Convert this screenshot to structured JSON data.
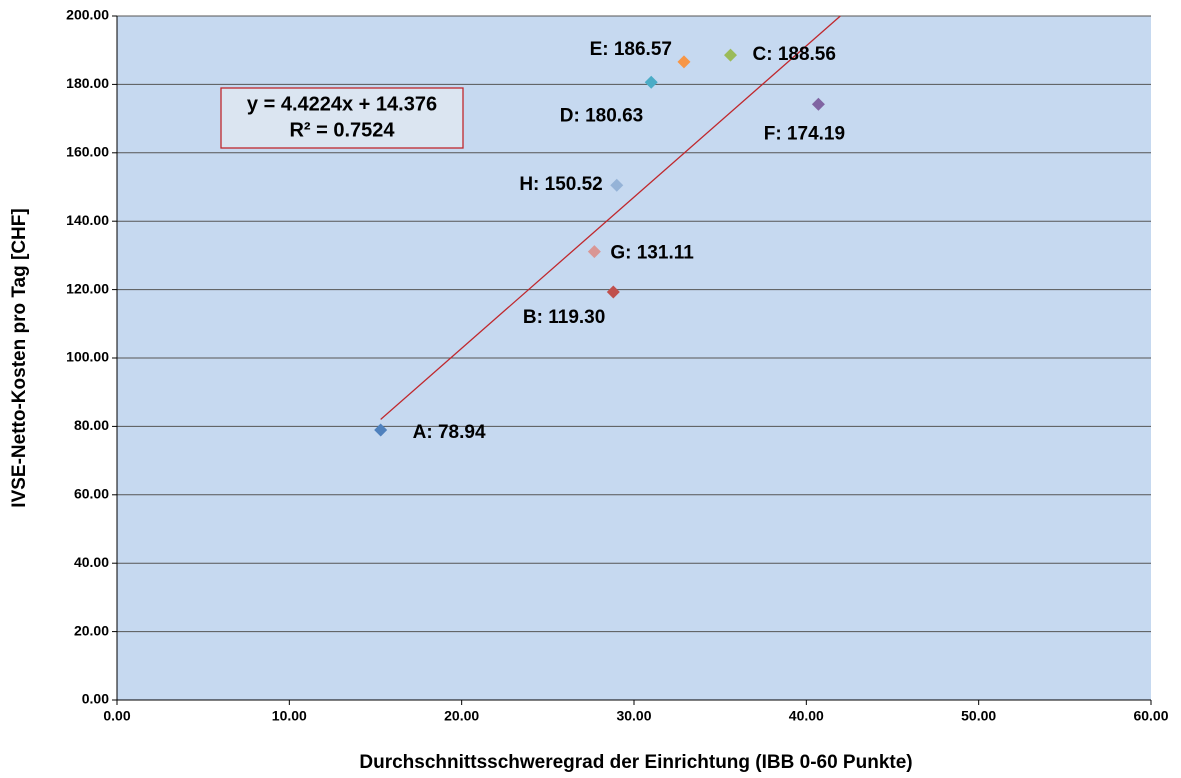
{
  "chart_data": {
    "type": "scatter",
    "x_label": "Durchschnittsschweregrad der Einrichtung (IBB 0-60 Punkte)",
    "y_label": "IVSE-Netto-Kosten pro Tag [CHF]",
    "x": [
      15.3,
      28.8,
      35.6,
      31.0,
      32.9,
      40.7,
      27.7,
      29.0
    ],
    "values": [
      78.94,
      119.3,
      188.56,
      180.63,
      186.57,
      174.19,
      131.11,
      150.52
    ],
    "value_labels": [
      "A: 78.94",
      "B: 119.30",
      "C: 188.56",
      "D: 180.63",
      "E: 186.57",
      "F: 174.19",
      "G: 131.11",
      "H: 150.52"
    ],
    "colors": [
      "#4f81bd",
      "#c0504d",
      "#9bbb59",
      "#4bacc6",
      "#f79646",
      "#8064a2",
      "#d99694",
      "#95b3d7"
    ],
    "xlim": [
      0,
      60
    ],
    "ylim": [
      0,
      200
    ],
    "xticks": [
      {
        "value": 0,
        "label": "0.00"
      },
      {
        "value": 10,
        "label": "10.00"
      },
      {
        "value": 20,
        "label": "20.00"
      },
      {
        "value": 30,
        "label": "30.00"
      },
      {
        "value": 40,
        "label": "40.00"
      },
      {
        "value": 50,
        "label": "50.00"
      },
      {
        "value": 60,
        "label": "60.00"
      }
    ],
    "yticks": [
      {
        "value": 0,
        "label": "0.00"
      },
      {
        "value": 20,
        "label": "20.00"
      },
      {
        "value": 40,
        "label": "40.00"
      },
      {
        "value": 60,
        "label": "60.00"
      },
      {
        "value": 80,
        "label": "80.00"
      },
      {
        "value": 100,
        "label": "100.00"
      },
      {
        "value": 120,
        "label": "120.00"
      },
      {
        "value": 140,
        "label": "140.00"
      },
      {
        "value": 160,
        "label": "160.00"
      },
      {
        "value": 180,
        "label": "180.00"
      },
      {
        "value": 200,
        "label": "200.00"
      }
    ],
    "grid": true,
    "trendline": {
      "slope": 4.4224,
      "intercept": 14.376,
      "color": "#c0282d",
      "equation": "y = 4.4224x + 14.376",
      "r2": "R² = 0.7524"
    }
  }
}
